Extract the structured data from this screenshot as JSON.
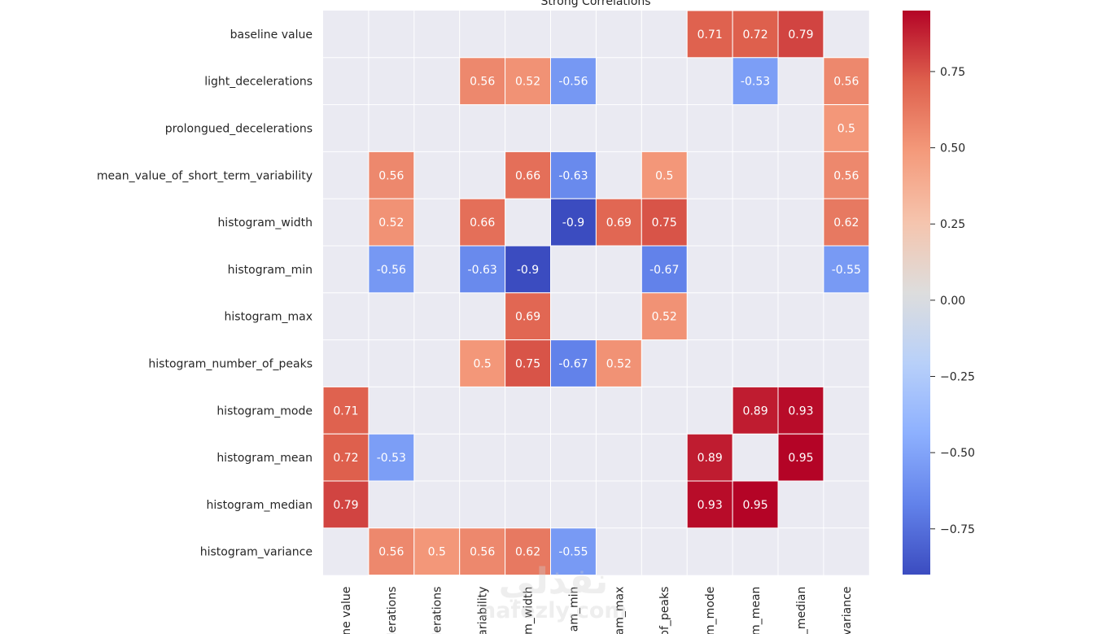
{
  "chart_data": {
    "type": "heatmap",
    "title": "Strong Correlations",
    "row_labels": [
      "baseline value",
      "light_decelerations",
      "prolongued_decelerations",
      "mean_value_of_short_term_variability",
      "histogram_width",
      "histogram_min",
      "histogram_max",
      "histogram_number_of_peaks",
      "histogram_mode",
      "histogram_mean",
      "histogram_median",
      "histogram_variance"
    ],
    "col_labels_visible": [
      "ne value",
      "elerations",
      "elerations",
      "ariability",
      "m_width",
      "am_min",
      "am_max",
      "of_peaks",
      "m_mode",
      "m_mean",
      "_median",
      "variance"
    ],
    "values": [
      [
        null,
        null,
        null,
        null,
        null,
        null,
        null,
        null,
        0.71,
        0.72,
        0.79,
        null
      ],
      [
        null,
        null,
        null,
        0.56,
        0.52,
        -0.56,
        null,
        null,
        null,
        -0.53,
        null,
        0.56
      ],
      [
        null,
        null,
        null,
        null,
        null,
        null,
        null,
        null,
        null,
        null,
        null,
        0.5
      ],
      [
        null,
        0.56,
        null,
        null,
        0.66,
        -0.63,
        null,
        0.5,
        null,
        null,
        null,
        0.56
      ],
      [
        null,
        0.52,
        null,
        0.66,
        null,
        -0.9,
        0.69,
        0.75,
        null,
        null,
        null,
        0.62
      ],
      [
        null,
        -0.56,
        null,
        -0.63,
        -0.9,
        null,
        null,
        -0.67,
        null,
        null,
        null,
        -0.55
      ],
      [
        null,
        null,
        null,
        null,
        0.69,
        null,
        null,
        0.52,
        null,
        null,
        null,
        null
      ],
      [
        null,
        null,
        null,
        0.5,
        0.75,
        -0.67,
        0.52,
        null,
        null,
        null,
        null,
        null
      ],
      [
        0.71,
        null,
        null,
        null,
        null,
        null,
        null,
        null,
        null,
        0.89,
        0.93,
        null
      ],
      [
        0.72,
        -0.53,
        null,
        null,
        null,
        null,
        null,
        null,
        0.89,
        null,
        0.95,
        null
      ],
      [
        0.79,
        null,
        null,
        null,
        null,
        null,
        null,
        null,
        0.93,
        0.95,
        null,
        null
      ],
      [
        null,
        0.56,
        0.5,
        0.56,
        0.62,
        -0.55,
        null,
        null,
        null,
        null,
        null,
        null
      ]
    ],
    "colormap": "coolwarm",
    "vmin": -0.9,
    "vmax": 0.95,
    "colorbar_ticks": [
      0.75,
      0.5,
      0.25,
      0.0,
      -0.25,
      -0.5,
      -0.75
    ],
    "colorbar_tick_labels": [
      "0.75",
      "0.50",
      "0.25",
      "0.00",
      "−0.25",
      "−0.50",
      "−0.75"
    ],
    "background_color": "#eaeaf2",
    "grid_color": "#ffffff"
  },
  "watermark": {
    "arabic": "نفذلي",
    "latin": "nafezly.com"
  }
}
